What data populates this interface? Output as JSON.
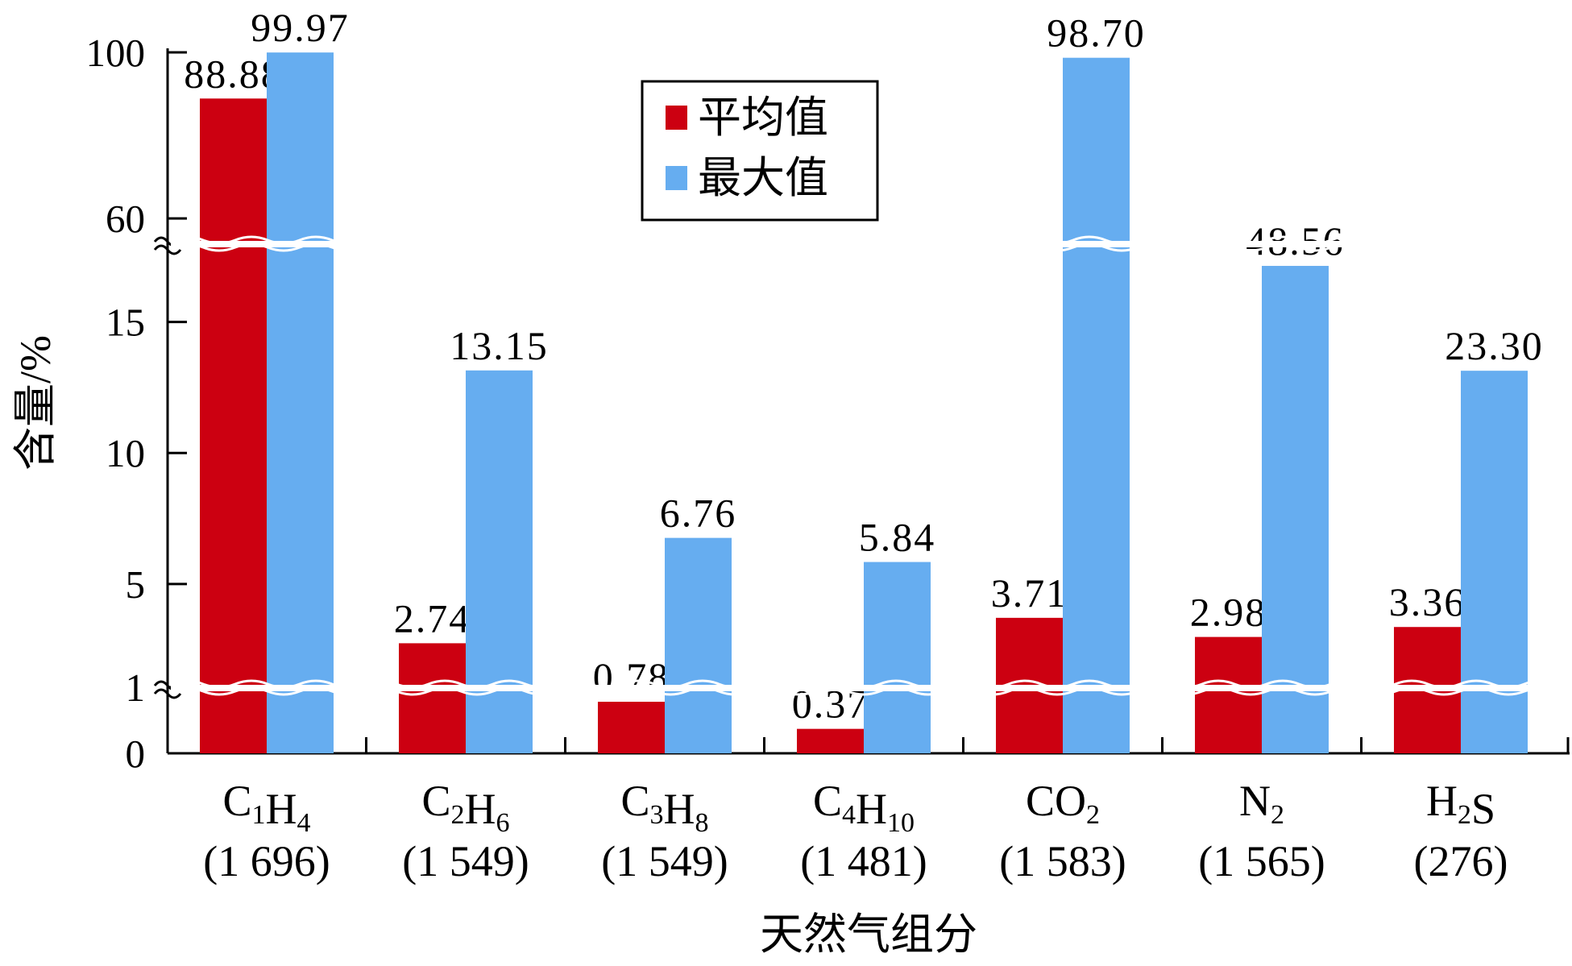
{
  "chart_data": {
    "type": "bar",
    "ylabel": "含量/%",
    "xlabel": "天然气组分",
    "y_ticks": [
      "0",
      "1",
      "5",
      "10",
      "15",
      "60",
      "100"
    ],
    "y_axis_breaks": [
      1,
      18
    ],
    "categories": [
      {
        "formula": [
          "C",
          "1",
          "H",
          "4"
        ],
        "count": "(1 696)"
      },
      {
        "formula": [
          "C",
          "2",
          "H",
          "6"
        ],
        "count": "(1 549)"
      },
      {
        "formula": [
          "C",
          "3",
          "H",
          "8"
        ],
        "count": "(1 549)"
      },
      {
        "formula": [
          "C",
          "4",
          "H",
          "10"
        ],
        "count": "(1 481)"
      },
      {
        "formula": [
          "CO",
          "2",
          "",
          ""
        ],
        "count": "(1 583)"
      },
      {
        "formula": [
          "N",
          "2",
          "",
          ""
        ],
        "count": "(1 565)"
      },
      {
        "formula": [
          "H",
          "2",
          "S",
          ""
        ],
        "count": "(276)"
      }
    ],
    "series": [
      {
        "name": "平均值",
        "color": "#cc0011",
        "values": [
          88.88,
          2.74,
          0.78,
          0.37,
          3.71,
          2.98,
          3.36
        ],
        "labels": [
          "88.88",
          "2.74",
          "0.78",
          "0.37",
          "3.71",
          "2.98",
          "3.36"
        ]
      },
      {
        "name": "最大值",
        "color": "#66adf0",
        "values": [
          99.97,
          13.15,
          6.76,
          5.84,
          98.7,
          48.56,
          23.3
        ],
        "labels": [
          "99.97",
          "13.15",
          "6.76",
          "5.84",
          "98.70",
          "48.56",
          "23.30"
        ]
      }
    ],
    "legend_position": "top-center",
    "grid": false
  }
}
